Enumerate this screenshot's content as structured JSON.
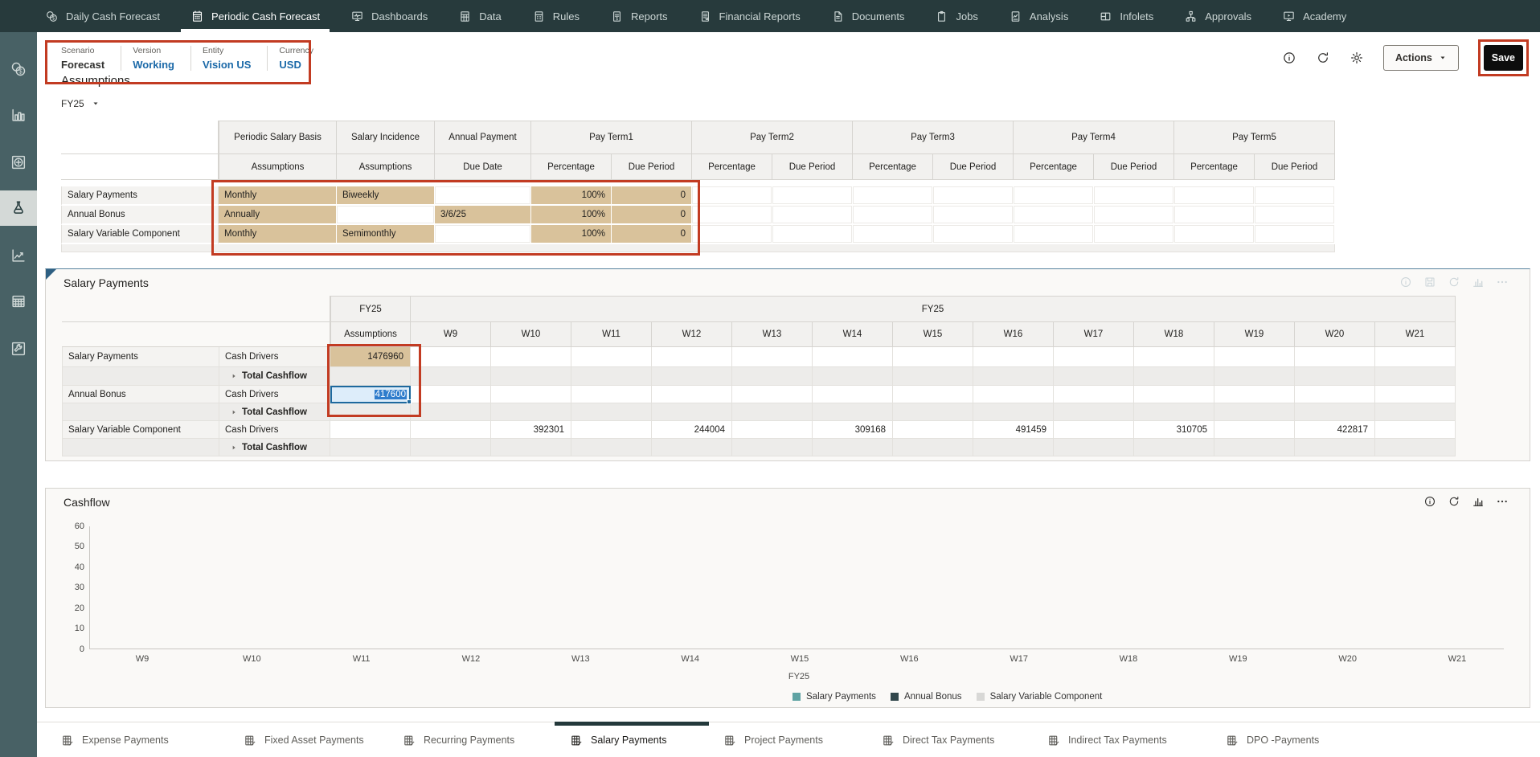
{
  "topnav": {
    "tabs": [
      {
        "name": "daily-cash-forecast",
        "label": "Daily Cash Forecast",
        "icon": "cash-daily",
        "active": false
      },
      {
        "name": "periodic-cash-forecast",
        "label": "Periodic Cash Forecast",
        "icon": "cash-periodic",
        "active": true
      },
      {
        "name": "dashboards",
        "label": "Dashboards",
        "icon": "dashboards",
        "active": false
      },
      {
        "name": "data",
        "label": "Data",
        "icon": "data",
        "active": false
      },
      {
        "name": "rules",
        "label": "Rules",
        "icon": "rules",
        "active": false
      },
      {
        "name": "reports",
        "label": "Reports",
        "icon": "reports",
        "active": false
      },
      {
        "name": "financial-reports",
        "label": "Financial Reports",
        "icon": "financial-reports",
        "active": false
      },
      {
        "name": "documents",
        "label": "Documents",
        "icon": "documents",
        "active": false
      },
      {
        "name": "jobs",
        "label": "Jobs",
        "icon": "jobs",
        "active": false
      },
      {
        "name": "analysis",
        "label": "Analysis",
        "icon": "analysis",
        "active": false
      },
      {
        "name": "infolets",
        "label": "Infolets",
        "icon": "infolets",
        "active": false
      },
      {
        "name": "approvals",
        "label": "Approvals",
        "icon": "approvals",
        "active": false
      },
      {
        "name": "academy",
        "label": "Academy",
        "icon": "academy",
        "active": false
      }
    ]
  },
  "sidebar": {
    "items": [
      {
        "name": "cash-currency",
        "icon": "side-cash",
        "active": false
      },
      {
        "name": "bar-chart",
        "icon": "side-bars",
        "active": false
      },
      {
        "name": "plus-target",
        "icon": "side-plus",
        "active": false
      },
      {
        "name": "forecast-flask",
        "icon": "side-flask",
        "active": true
      },
      {
        "name": "trend-chart",
        "icon": "side-trend",
        "active": false
      },
      {
        "name": "data-table",
        "icon": "side-table",
        "active": false
      },
      {
        "name": "tools-wrench",
        "icon": "side-wrench",
        "active": false
      }
    ]
  },
  "pov": {
    "fields": [
      {
        "label": "Scenario",
        "value": "Forecast",
        "link": false
      },
      {
        "label": "Version",
        "value": "Working",
        "link": true
      },
      {
        "label": "Entity",
        "value": "Vision US",
        "link": true
      },
      {
        "label": "Currency",
        "value": "USD",
        "link": true
      }
    ]
  },
  "toolbar": {
    "icons": [
      "info",
      "refresh",
      "settings"
    ],
    "actions_label": "Actions",
    "save_label": "Save"
  },
  "annotations": {
    "highlight_color": "#c23b22"
  },
  "assumptions": {
    "title": "Assumptions",
    "year": "FY25",
    "groups": [
      {
        "label": "Periodic Salary Basis",
        "span": 1
      },
      {
        "label": "Salary Incidence",
        "span": 1
      },
      {
        "label": "Annual Payment",
        "span": 1
      },
      {
        "label": "Pay Term1",
        "span": 2
      },
      {
        "label": "Pay Term2",
        "span": 2
      },
      {
        "label": "Pay Term3",
        "span": 2
      },
      {
        "label": "Pay Term4",
        "span": 2
      },
      {
        "label": "Pay Term5",
        "span": 2
      }
    ],
    "subheaders": [
      "Assumptions",
      "Assumptions",
      "Due Date",
      "Percentage",
      "Due Period",
      "Percentage",
      "Due Period",
      "Percentage",
      "Due Period",
      "Percentage",
      "Due Period",
      "Percentage",
      "Due Period"
    ],
    "rows": [
      {
        "label": "Salary Payments",
        "cells": [
          {
            "v": "Monthly",
            "s": "tan"
          },
          {
            "v": "Biweekly",
            "s": "tan"
          },
          {
            "v": "",
            "s": "blank"
          },
          {
            "v": "100%",
            "s": "tan num"
          },
          {
            "v": "0",
            "s": "tan num"
          },
          {
            "v": "",
            "s": "blank"
          },
          {
            "v": "",
            "s": "blank"
          },
          {
            "v": "",
            "s": "blank"
          },
          {
            "v": "",
            "s": "blank"
          },
          {
            "v": "",
            "s": "blank"
          },
          {
            "v": "",
            "s": "blank"
          },
          {
            "v": "",
            "s": "blank"
          },
          {
            "v": "",
            "s": "blank"
          }
        ]
      },
      {
        "label": "Annual Bonus",
        "cells": [
          {
            "v": "Annually",
            "s": "tan"
          },
          {
            "v": "",
            "s": "blank"
          },
          {
            "v": "3/6/25",
            "s": "tan"
          },
          {
            "v": "100%",
            "s": "tan num"
          },
          {
            "v": "0",
            "s": "tan num"
          },
          {
            "v": "",
            "s": "blank"
          },
          {
            "v": "",
            "s": "blank"
          },
          {
            "v": "",
            "s": "blank"
          },
          {
            "v": "",
            "s": "blank"
          },
          {
            "v": "",
            "s": "blank"
          },
          {
            "v": "",
            "s": "blank"
          },
          {
            "v": "",
            "s": "blank"
          },
          {
            "v": "",
            "s": "blank"
          }
        ]
      },
      {
        "label": "Salary Variable Component",
        "cells": [
          {
            "v": "Monthly",
            "s": "tan"
          },
          {
            "v": "Semimonthly",
            "s": "tan"
          },
          {
            "v": "",
            "s": "blank"
          },
          {
            "v": "100%",
            "s": "tan num"
          },
          {
            "v": "0",
            "s": "tan num"
          },
          {
            "v": "",
            "s": "blank"
          },
          {
            "v": "",
            "s": "blank"
          },
          {
            "v": "",
            "s": "blank"
          },
          {
            "v": "",
            "s": "blank"
          },
          {
            "v": "",
            "s": "blank"
          },
          {
            "v": "",
            "s": "blank"
          },
          {
            "v": "",
            "s": "blank"
          },
          {
            "v": "",
            "s": "blank"
          }
        ]
      }
    ]
  },
  "salary_grid": {
    "title": "Salary Payments",
    "year_header": "FY25",
    "weeks_year_header": "FY25",
    "assumptions_header": "Assumptions",
    "weeks": [
      "W9",
      "W10",
      "W11",
      "W12",
      "W13",
      "W14",
      "W15",
      "W16",
      "W17",
      "W18",
      "W19",
      "W20",
      "W21"
    ],
    "panel_icons": [
      "info",
      "save",
      "refresh",
      "chart",
      "ellipsis"
    ],
    "rows": [
      {
        "label": "Salary Payments",
        "driver": "Cash Drivers",
        "type": "driver",
        "assumption": {
          "v": "1476960",
          "s": "tan"
        },
        "weeks": [
          "",
          "",
          "",
          "",
          "",
          "",
          "",
          "",
          "",
          "",
          "",
          "",
          ""
        ]
      },
      {
        "label": "",
        "driver": "Total Cashflow",
        "type": "total",
        "weeks": [
          "",
          "",
          "",
          "",
          "",
          "",
          "",
          "",
          "",
          "",
          "",
          "",
          ""
        ]
      },
      {
        "label": "Annual Bonus",
        "driver": "Cash Drivers",
        "type": "driver",
        "assumption": {
          "v": "417600",
          "s": "editing"
        },
        "weeks": [
          "",
          "",
          "",
          "",
          "",
          "",
          "",
          "",
          "",
          "",
          "",
          "",
          ""
        ]
      },
      {
        "label": "",
        "driver": "Total Cashflow",
        "type": "total",
        "weeks": [
          "",
          "",
          "",
          "",
          "",
          "",
          "",
          "",
          "",
          "",
          "",
          "",
          ""
        ]
      },
      {
        "label": "Salary Variable Component",
        "driver": "Cash Drivers",
        "type": "driver",
        "assumption": {
          "v": "",
          "s": "blank"
        },
        "weeks": [
          "",
          "392301",
          "",
          "244004",
          "",
          "309168",
          "",
          "491459",
          "",
          "310705",
          "",
          "422817",
          ""
        ]
      },
      {
        "label": "",
        "driver": "Total Cashflow",
        "type": "total",
        "weeks": [
          "",
          "",
          "",
          "",
          "",
          "",
          "",
          "",
          "",
          "",
          "",
          "",
          ""
        ]
      }
    ]
  },
  "cashflow": {
    "title": "Cashflow",
    "icons": [
      "info",
      "refresh",
      "chart",
      "ellipsis"
    ]
  },
  "chart_data": {
    "type": "bar",
    "title": "Cashflow",
    "categories": [
      "W9",
      "W10",
      "W11",
      "W12",
      "W13",
      "W14",
      "W15",
      "W16",
      "W17",
      "W18",
      "W19",
      "W20",
      "W21"
    ],
    "group_label": "FY25",
    "series": [
      {
        "name": "Salary Payments",
        "color": "#5fa3a3",
        "values": [
          0,
          0,
          0,
          0,
          0,
          0,
          0,
          0,
          0,
          0,
          0,
          0,
          0
        ]
      },
      {
        "name": "Annual Bonus",
        "color": "#31474b",
        "values": [
          0,
          0,
          0,
          0,
          0,
          0,
          0,
          0,
          0,
          0,
          0,
          0,
          0
        ]
      },
      {
        "name": "Salary Variable Component",
        "color": "#d8d8d6",
        "values": [
          0,
          0,
          0,
          0,
          0,
          0,
          0,
          0,
          0,
          0,
          0,
          0,
          0
        ]
      }
    ],
    "ylim": [
      0,
      60
    ],
    "yticks": [
      60,
      50,
      40,
      30,
      20,
      10,
      0
    ],
    "grid": false,
    "legend_position": "bottom"
  },
  "bottom_tabs": {
    "tabs": [
      {
        "label": "Expense Payments",
        "active": false
      },
      {
        "label": "Fixed Asset Payments",
        "active": false
      },
      {
        "label": "Recurring Payments",
        "active": false
      },
      {
        "label": "Salary Payments",
        "active": true
      },
      {
        "label": "Project Payments",
        "active": false
      },
      {
        "label": "Direct Tax Payments",
        "active": false
      },
      {
        "label": "Indirect Tax Payments",
        "active": false
      },
      {
        "label": "DPO -Payments",
        "active": false
      }
    ]
  }
}
